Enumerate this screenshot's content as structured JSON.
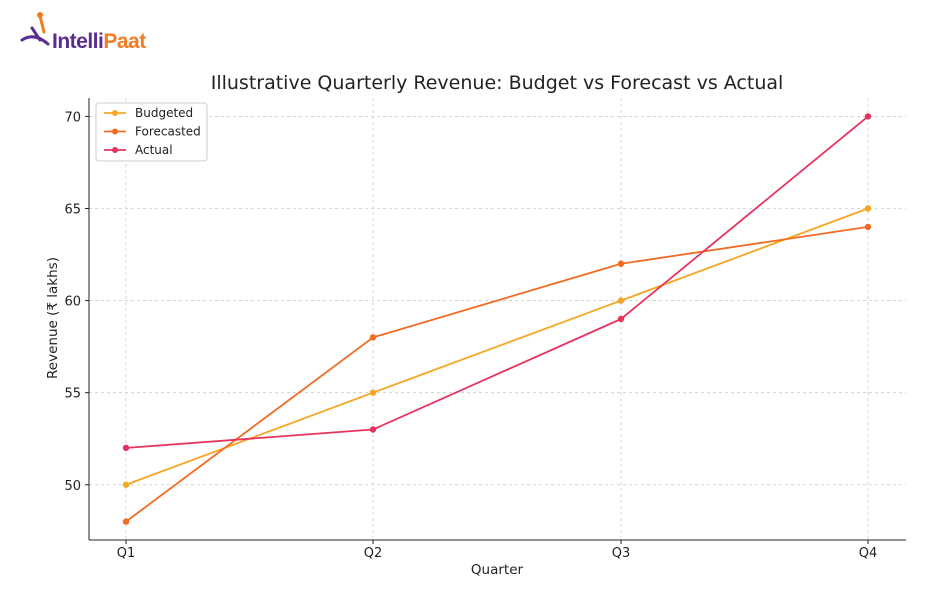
{
  "brand": {
    "name_part1": "Intelli",
    "name_part2": "Paat",
    "color_primary": "#5a2d91",
    "color_accent": "#f47b20"
  },
  "chart_data": {
    "type": "line",
    "title": "Illustrative Quarterly Revenue: Budget vs Forecast vs Actual",
    "xlabel": "Quarter",
    "ylabel": "Revenue (₹ lakhs)",
    "categories": [
      "Q1",
      "Q2",
      "Q3",
      "Q4"
    ],
    "ylim": [
      47,
      71
    ],
    "yticks": [
      50,
      55,
      60,
      65,
      70
    ],
    "grid": true,
    "legend_position": "top-left",
    "series": [
      {
        "name": "Budgeted",
        "color": "#f5a623",
        "values": [
          50,
          55,
          60,
          65
        ]
      },
      {
        "name": "Forecasted",
        "color": "#f26b22",
        "values": [
          48,
          58,
          62,
          64
        ]
      },
      {
        "name": "Actual",
        "color": "#e8335f",
        "values": [
          52,
          53,
          59,
          70
        ]
      }
    ]
  }
}
